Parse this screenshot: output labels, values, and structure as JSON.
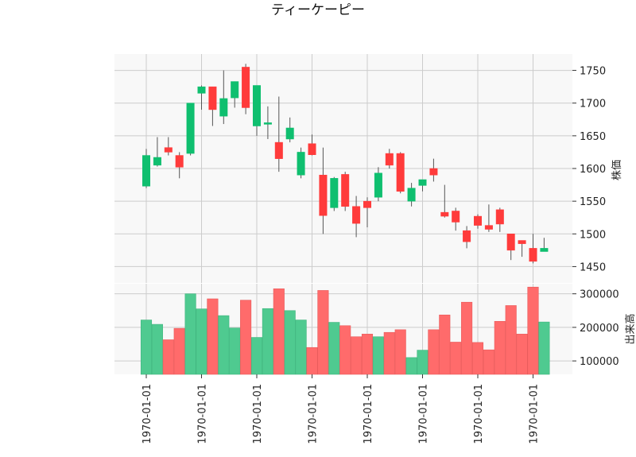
{
  "chart_data": {
    "type": "candlestick",
    "title": "ティーケーピー",
    "price_label": "株価",
    "volume_label": "出来高",
    "colors": {
      "up": "#0fbf6f",
      "down": "#ff3b3b",
      "up_volume": "#4fca90",
      "down_volume": "#ff6b6b",
      "grid": "#cccccc",
      "panel_bg": "#f8f8f8"
    },
    "grid": true,
    "price_ylim": [
      1425,
      1775
    ],
    "price_ticks": [
      1450,
      1500,
      1550,
      1600,
      1650,
      1700,
      1750
    ],
    "volume_ylim": [
      60000,
      330000
    ],
    "volume_ticks": [
      100000,
      200000,
      300000
    ],
    "x_tick_labels": [
      "1970-01-01",
      "1970-01-01",
      "1970-01-01",
      "1970-01-01",
      "1970-01-01",
      "1970-01-01",
      "1970-01-01",
      "1970-01-01"
    ],
    "x_tick_positions": [
      0,
      5,
      10,
      15,
      20,
      25,
      30,
      35
    ],
    "candles": [
      {
        "open": 1573,
        "high": 1630,
        "low": 1570,
        "close": 1620,
        "volume": 222000
      },
      {
        "open": 1605,
        "high": 1648,
        "low": 1603,
        "close": 1617,
        "volume": 209000
      },
      {
        "open": 1632,
        "high": 1648,
        "low": 1620,
        "close": 1625,
        "volume": 163000
      },
      {
        "open": 1620,
        "high": 1625,
        "low": 1585,
        "close": 1602,
        "volume": 197000
      },
      {
        "open": 1623,
        "high": 1700,
        "low": 1620,
        "close": 1700,
        "volume": 300000
      },
      {
        "open": 1715,
        "high": 1727,
        "low": 1690,
        "close": 1725,
        "volume": 255000
      },
      {
        "open": 1725,
        "high": 1725,
        "low": 1665,
        "close": 1690,
        "volume": 285000
      },
      {
        "open": 1680,
        "high": 1750,
        "low": 1668,
        "close": 1707,
        "volume": 235000
      },
      {
        "open": 1708,
        "high": 1733,
        "low": 1693,
        "close": 1733,
        "volume": 198000
      },
      {
        "open": 1755,
        "high": 1760,
        "low": 1683,
        "close": 1693,
        "volume": 281000
      },
      {
        "open": 1665,
        "high": 1727,
        "low": 1650,
        "close": 1727,
        "volume": 170000
      },
      {
        "open": 1669,
        "high": 1695,
        "low": 1645,
        "close": 1670,
        "volume": 256000
      },
      {
        "open": 1640,
        "high": 1710,
        "low": 1595,
        "close": 1615,
        "volume": 315000
      },
      {
        "open": 1645,
        "high": 1678,
        "low": 1640,
        "close": 1662,
        "volume": 250000
      },
      {
        "open": 1590,
        "high": 1632,
        "low": 1585,
        "close": 1625,
        "volume": 222000
      },
      {
        "open": 1638,
        "high": 1652,
        "low": 1620,
        "close": 1621,
        "volume": 140000
      },
      {
        "open": 1590,
        "high": 1632,
        "low": 1500,
        "close": 1528,
        "volume": 310000
      },
      {
        "open": 1540,
        "high": 1587,
        "low": 1535,
        "close": 1585,
        "volume": 215000
      },
      {
        "open": 1591,
        "high": 1595,
        "low": 1535,
        "close": 1542,
        "volume": 205000
      },
      {
        "open": 1542,
        "high": 1558,
        "low": 1495,
        "close": 1516,
        "volume": 172000
      },
      {
        "open": 1550,
        "high": 1556,
        "low": 1510,
        "close": 1540,
        "volume": 180000
      },
      {
        "open": 1556,
        "high": 1602,
        "low": 1550,
        "close": 1593,
        "volume": 172000
      },
      {
        "open": 1623,
        "high": 1630,
        "low": 1600,
        "close": 1605,
        "volume": 185000
      },
      {
        "open": 1623,
        "high": 1625,
        "low": 1562,
        "close": 1565,
        "volume": 193000
      },
      {
        "open": 1550,
        "high": 1578,
        "low": 1542,
        "close": 1570,
        "volume": 110000
      },
      {
        "open": 1574,
        "high": 1583,
        "low": 1565,
        "close": 1583,
        "volume": 132000
      },
      {
        "open": 1600,
        "high": 1615,
        "low": 1580,
        "close": 1590,
        "volume": 193000
      },
      {
        "open": 1533,
        "high": 1575,
        "low": 1525,
        "close": 1527,
        "volume": 237000
      },
      {
        "open": 1535,
        "high": 1540,
        "low": 1505,
        "close": 1518,
        "volume": 156000
      },
      {
        "open": 1505,
        "high": 1512,
        "low": 1478,
        "close": 1488,
        "volume": 275000
      },
      {
        "open": 1527,
        "high": 1530,
        "low": 1508,
        "close": 1513,
        "volume": 155000
      },
      {
        "open": 1513,
        "high": 1545,
        "low": 1503,
        "close": 1507,
        "volume": 133000
      },
      {
        "open": 1537,
        "high": 1540,
        "low": 1503,
        "close": 1515,
        "volume": 218000
      },
      {
        "open": 1500,
        "high": 1500,
        "low": 1460,
        "close": 1475,
        "volume": 265000
      },
      {
        "open": 1490,
        "high": 1490,
        "low": 1465,
        "close": 1485,
        "volume": 180000
      },
      {
        "open": 1478,
        "high": 1500,
        "low": 1455,
        "close": 1458,
        "volume": 320000
      },
      {
        "open": 1473,
        "high": 1494,
        "low": 1473,
        "close": 1478,
        "volume": 216000
      }
    ]
  }
}
